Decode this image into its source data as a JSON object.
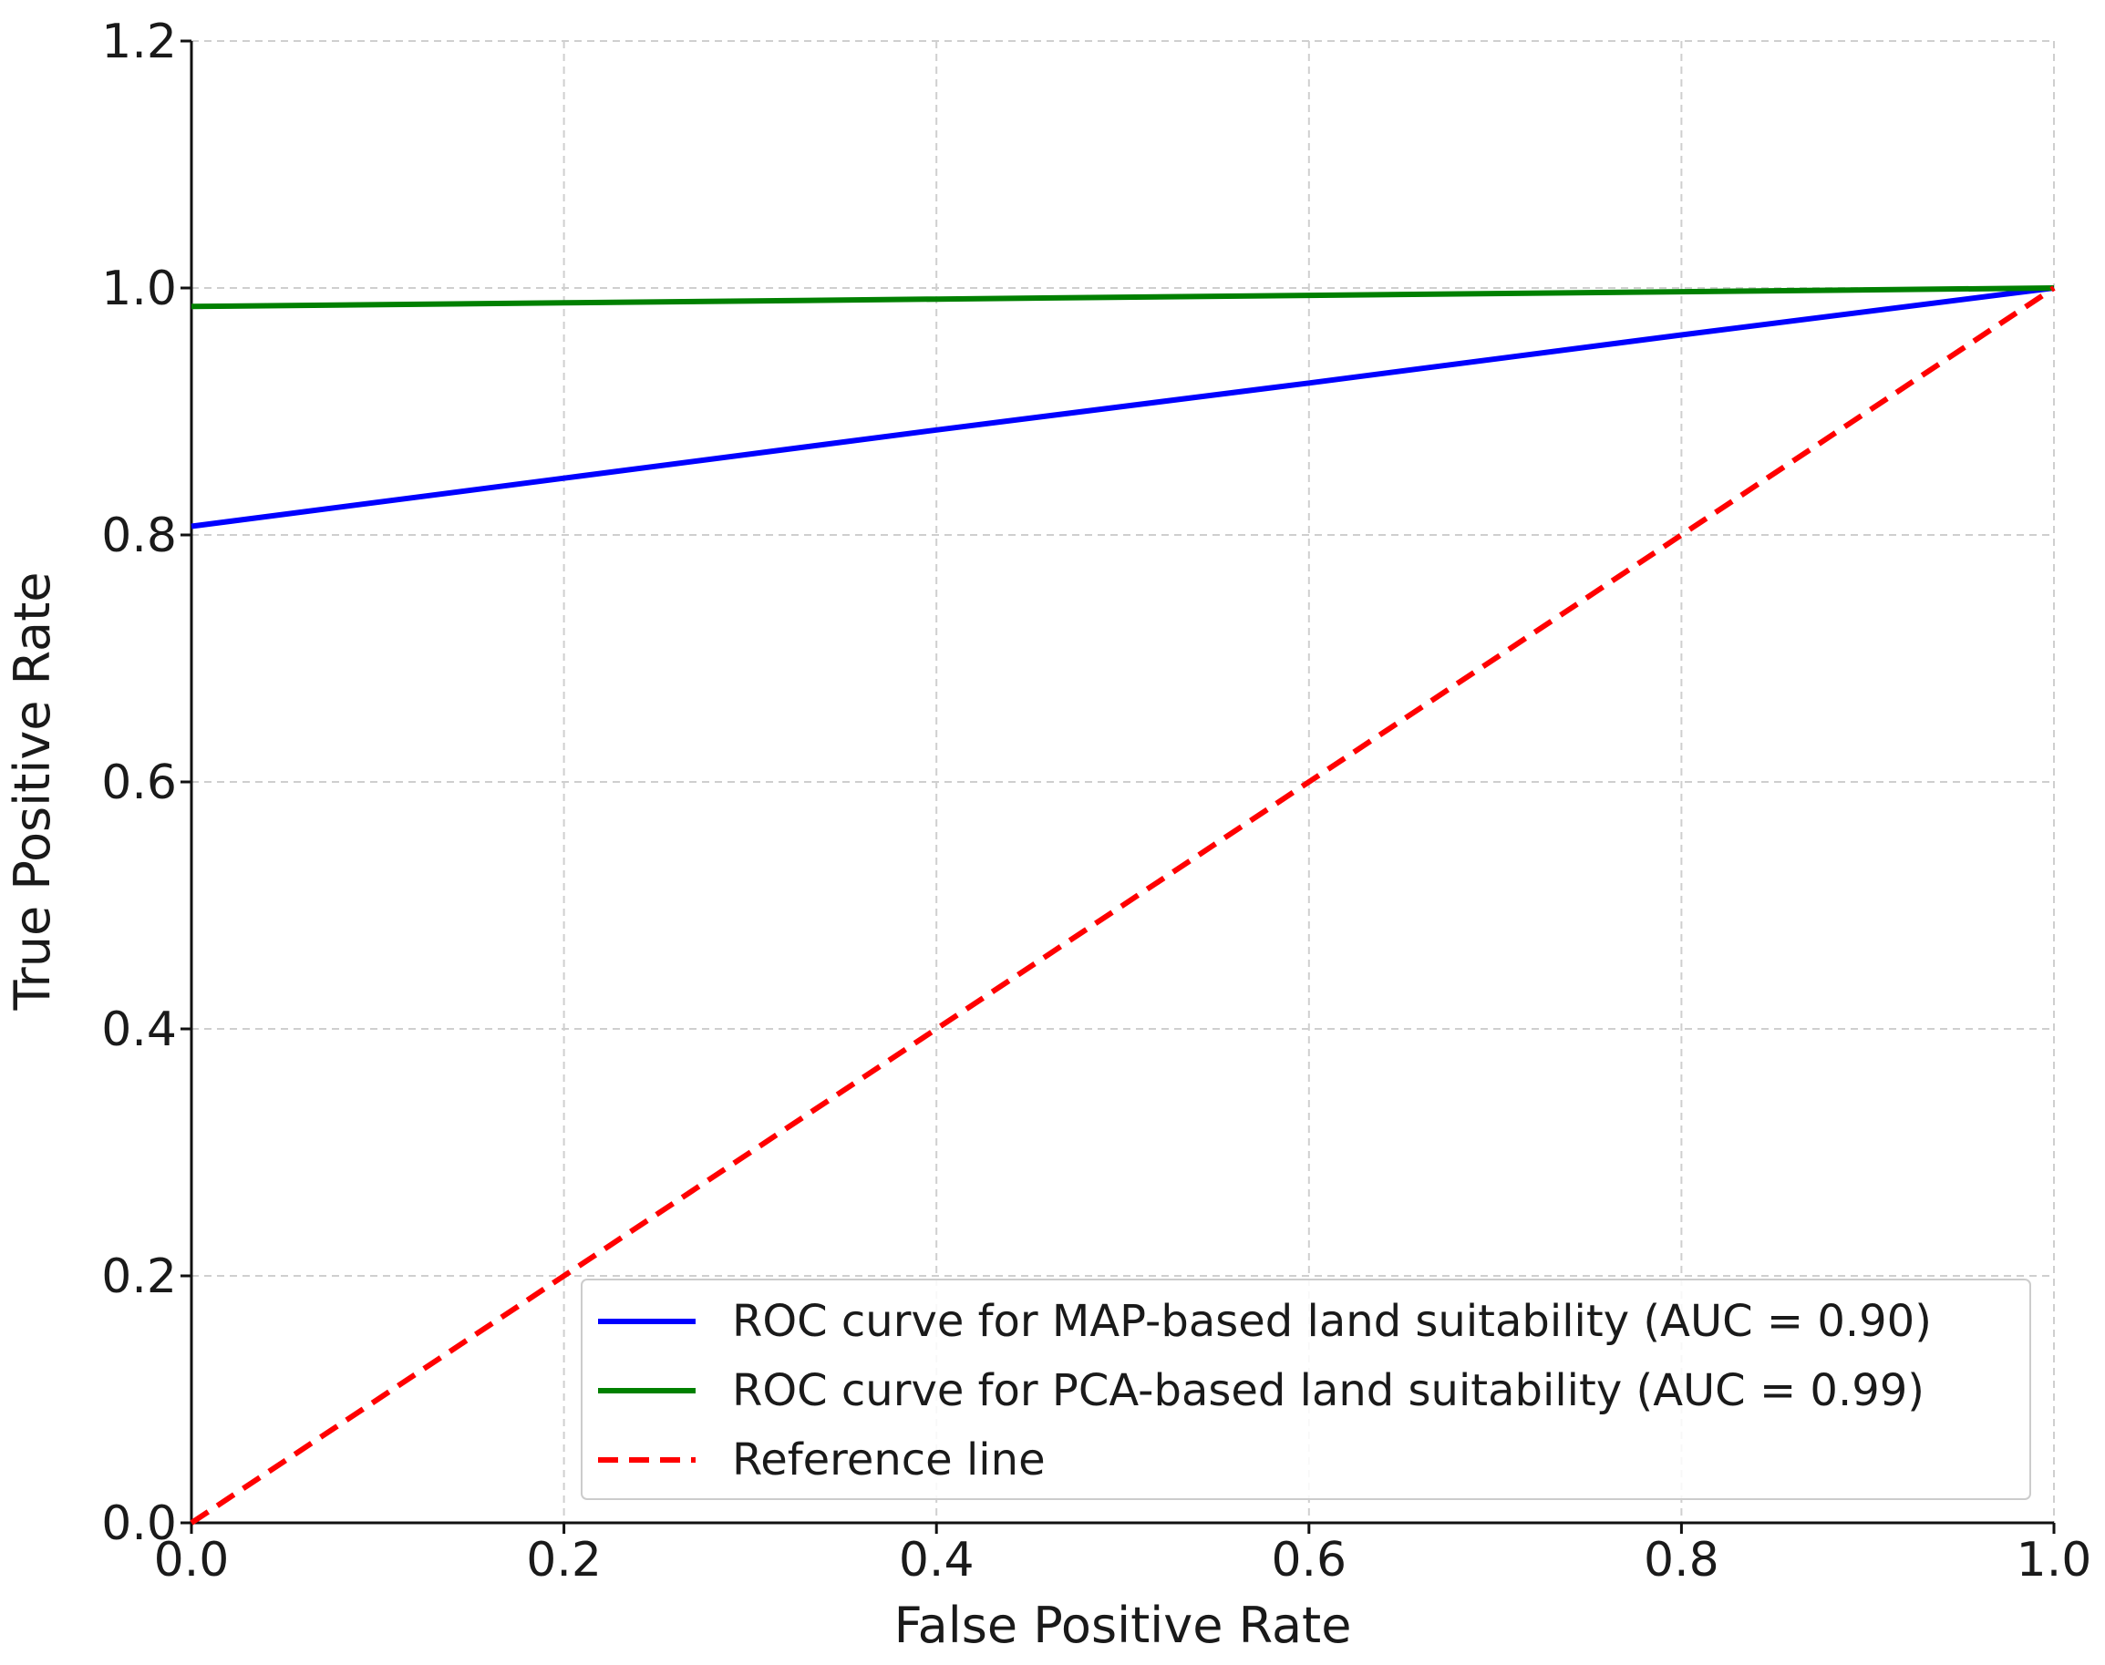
{
  "chart_data": {
    "type": "line",
    "title": "",
    "xlabel": "False Positive Rate",
    "ylabel": "True Positive Rate",
    "xlim": [
      0.0,
      1.0
    ],
    "ylim": [
      0.0,
      1.2
    ],
    "xticks": [
      0.0,
      0.2,
      0.4,
      0.6,
      0.8,
      1.0
    ],
    "yticks": [
      0.0,
      0.2,
      0.4,
      0.6,
      0.8,
      1.0,
      1.2
    ],
    "xtick_labels": [
      "0.0",
      "0.2",
      "0.4",
      "0.6",
      "0.8",
      "1.0"
    ],
    "ytick_labels": [
      "0.0",
      "0.2",
      "0.4",
      "0.6",
      "0.8",
      "1.0",
      "1.2"
    ],
    "grid": true,
    "legend_position": "bottom-right",
    "series": [
      {
        "name": "ROC curve for MAP-based land suitability (AUC = 0.90)",
        "color": "#0000ff",
        "style": "solid",
        "x": [
          0.0,
          0.2,
          0.4,
          0.6,
          0.8,
          1.0
        ],
        "y": [
          0.807,
          0.846,
          0.885,
          0.923,
          0.962,
          1.0
        ]
      },
      {
        "name": "ROC curve for PCA-based land suitability (AUC = 0.99)",
        "color": "#008000",
        "style": "solid",
        "x": [
          0.0,
          0.2,
          0.4,
          0.6,
          0.8,
          1.0
        ],
        "y": [
          0.985,
          0.988,
          0.991,
          0.994,
          0.997,
          1.0
        ]
      },
      {
        "name": "Reference line",
        "color": "#ff0000",
        "style": "dashed",
        "x": [
          0.0,
          1.0
        ],
        "y": [
          0.0,
          1.0
        ]
      }
    ]
  }
}
